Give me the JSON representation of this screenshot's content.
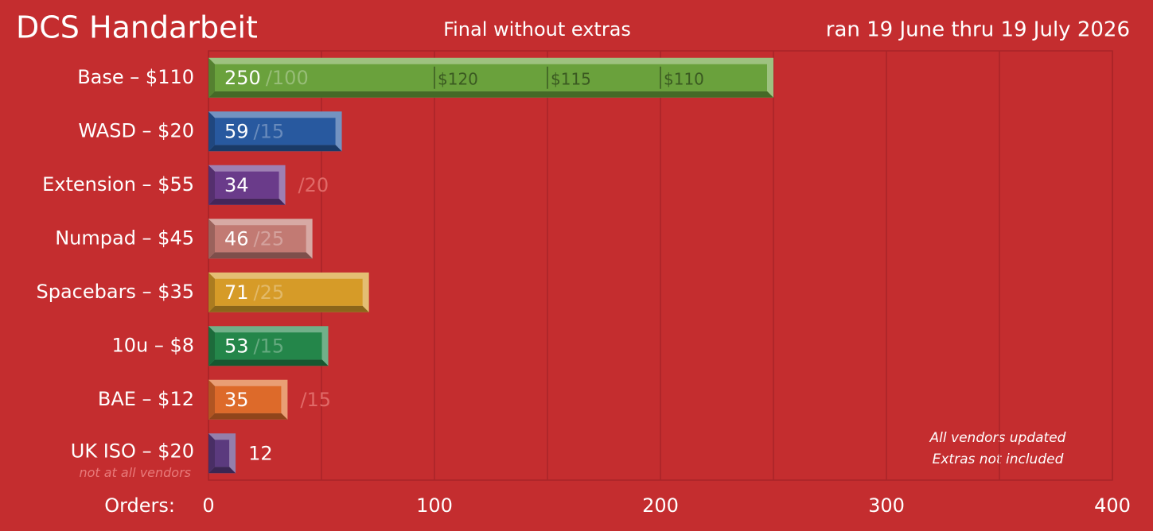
{
  "chart_data": {
    "type": "bar",
    "title": "DCS Handarbeit",
    "subtitle": "Final without extras",
    "date_range": "ran 19 June thru 19 July 2026",
    "x_label": "Orders:",
    "categories": [
      "Base – $110",
      "WASD – $20",
      "Extension – $55",
      "Numpad – $45",
      "Spacebars – $35",
      "10u – $8",
      "BAE – $12",
      "UK ISO – $20"
    ],
    "category_notes": [
      null,
      null,
      null,
      null,
      null,
      null,
      null,
      "not at all vendors"
    ],
    "values": [
      250,
      59,
      34,
      46,
      71,
      53,
      35,
      12
    ],
    "minimum_labels": [
      "/100",
      "/15",
      "/20",
      "/25",
      "/25",
      "/15",
      "/15",
      null
    ],
    "colors": [
      "#6aa13c",
      "#28599f",
      "#6a3b8a",
      "#c27a73",
      "#d69b28",
      "#24864a",
      "#dd6a2a",
      "#5b3a7e"
    ],
    "tiers": [
      {
        "value": 100,
        "label": "$120"
      },
      {
        "value": 150,
        "label": "$115"
      },
      {
        "value": 200,
        "label": "$110"
      }
    ],
    "xlim": [
      0,
      400
    ],
    "xticks": [
      0,
      100,
      200,
      300,
      400
    ],
    "x_minor_grid": [
      50,
      150,
      250,
      350
    ],
    "grid": true,
    "annotations": [
      "All vendors updated",
      "Extras not included"
    ]
  }
}
